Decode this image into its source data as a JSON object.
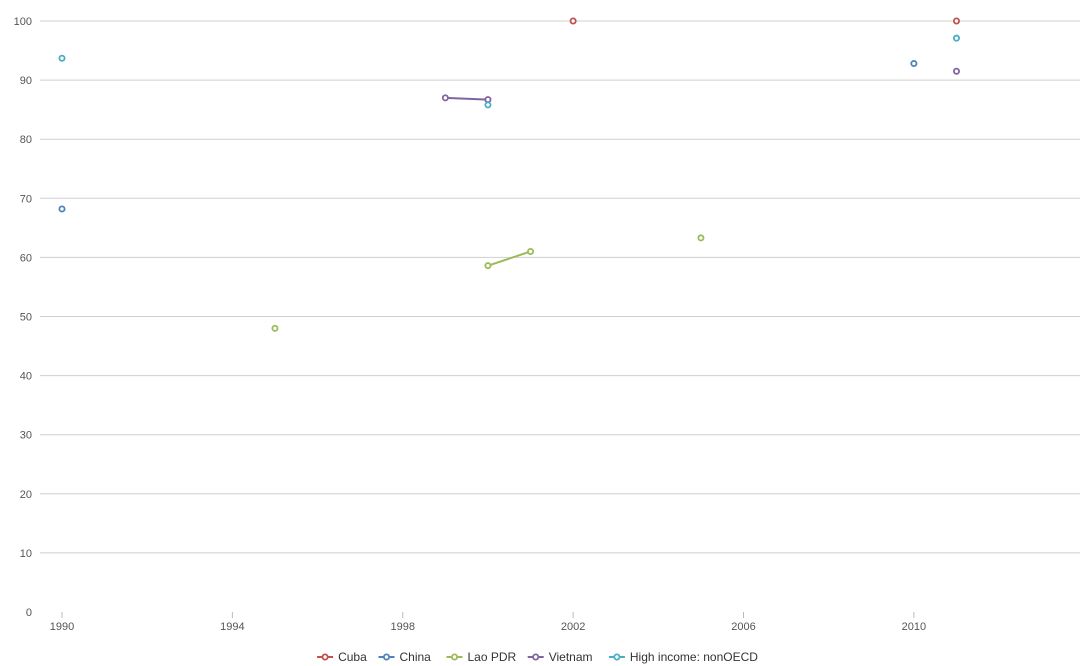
{
  "chart_data": {
    "type": "line",
    "xlim": [
      1990,
      2013.9
    ],
    "ylim": [
      0,
      100
    ],
    "x_ticks": [
      1990,
      1994,
      1998,
      2002,
      2006,
      2010
    ],
    "y_ticks": [
      0,
      10,
      20,
      30,
      40,
      50,
      60,
      70,
      80,
      90,
      100
    ],
    "grid": true,
    "legend_position": "bottom",
    "series": [
      {
        "name": "Cuba",
        "color": "#c0504d",
        "points": [
          [
            2002,
            100.0
          ],
          [
            2011,
            100.0
          ]
        ]
      },
      {
        "name": "China",
        "color": "#4f81bd",
        "points": [
          [
            1990,
            68.2
          ],
          [
            2010,
            92.8
          ]
        ]
      },
      {
        "name": "Lao PDR",
        "color": "#9bbb59",
        "points": [
          [
            1995,
            48.0
          ],
          [
            2000,
            58.6
          ],
          [
            2001,
            61.0
          ],
          [
            2005,
            63.3
          ]
        ]
      },
      {
        "name": "Vietnam",
        "color": "#8064a2",
        "points": [
          [
            1999,
            87.0
          ],
          [
            2000,
            86.7
          ],
          [
            2011,
            91.5
          ]
        ]
      },
      {
        "name": "High income: nonOECD",
        "color": "#4bacc6",
        "points": [
          [
            1990,
            93.7
          ],
          [
            2000,
            85.8
          ],
          [
            2011,
            97.1
          ]
        ]
      }
    ]
  }
}
